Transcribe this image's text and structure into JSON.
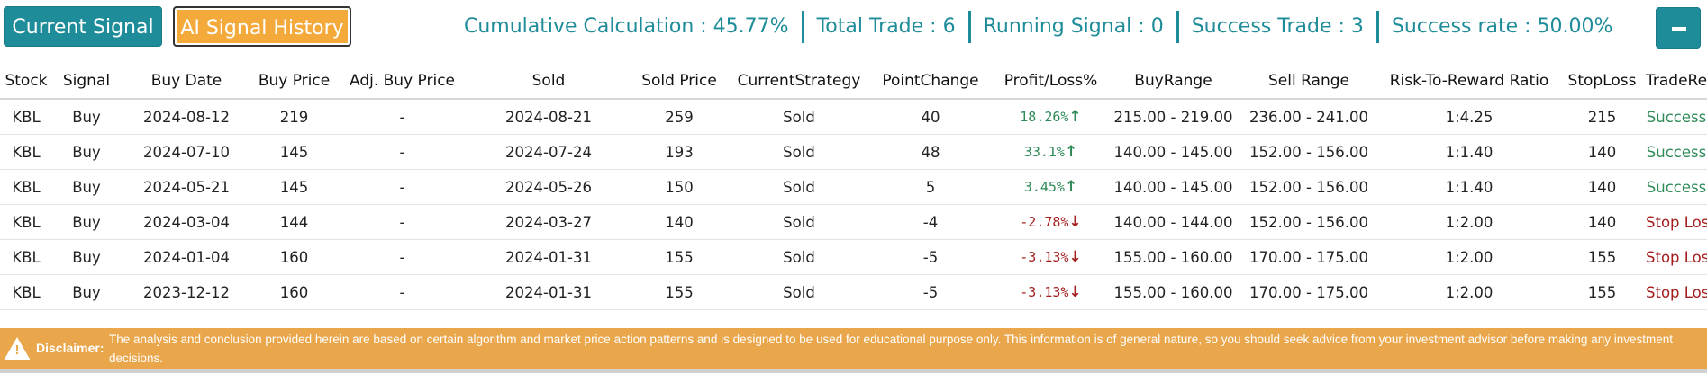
{
  "toolbar": {
    "current_signal_label": "Current Signal",
    "history_label": "AI Signal History",
    "collapse_icon": "minus-icon"
  },
  "stats": {
    "cumulative": "Cumulative Calculation :  45.77%",
    "total_trade": "Total Trade :  6",
    "running_signal": "Running Signal :  0",
    "success_trade": "Success Trade :  3",
    "success_rate": "Success rate :  50.00%"
  },
  "table": {
    "headers": [
      "Stock",
      "Signal",
      "Buy Date",
      "Buy Price",
      "Adj. Buy Price",
      "Sold",
      "Sold Price",
      "CurrentStrategy",
      "PointChange",
      "Profit/Loss%",
      "BuyRange",
      "Sell Range",
      "Risk-To-Reward Ratio",
      "StopLoss",
      "TradeResult"
    ],
    "rows": [
      {
        "stock": "KBL",
        "signal": "Buy",
        "buy_date": "2024-08-12",
        "buy_price": "219",
        "adj_buy_price": "-",
        "sold": "2024-08-21",
        "sold_price": "259",
        "strategy": "Sold",
        "point_change": "40",
        "pl": "18.26%",
        "pl_dir": "up",
        "buy_range": "215.00 - 219.00",
        "sell_range": "236.00 - 241.00",
        "rr": "1:4.25",
        "stoploss": "215",
        "result": "Success"
      },
      {
        "stock": "KBL",
        "signal": "Buy",
        "buy_date": "2024-07-10",
        "buy_price": "145",
        "adj_buy_price": "-",
        "sold": "2024-07-24",
        "sold_price": "193",
        "strategy": "Sold",
        "point_change": "48",
        "pl": "33.1%",
        "pl_dir": "up",
        "buy_range": "140.00 - 145.00",
        "sell_range": "152.00 - 156.00",
        "rr": "1:1.40",
        "stoploss": "140",
        "result": "Success"
      },
      {
        "stock": "KBL",
        "signal": "Buy",
        "buy_date": "2024-05-21",
        "buy_price": "145",
        "adj_buy_price": "-",
        "sold": "2024-05-26",
        "sold_price": "150",
        "strategy": "Sold",
        "point_change": "5",
        "pl": "3.45%",
        "pl_dir": "up",
        "buy_range": "140.00 - 145.00",
        "sell_range": "152.00 - 156.00",
        "rr": "1:1.40",
        "stoploss": "140",
        "result": "Success"
      },
      {
        "stock": "KBL",
        "signal": "Buy",
        "buy_date": "2024-03-04",
        "buy_price": "144",
        "adj_buy_price": "-",
        "sold": "2024-03-27",
        "sold_price": "140",
        "strategy": "Sold",
        "point_change": "-4",
        "pl": "-2.78%",
        "pl_dir": "down",
        "buy_range": "140.00 - 144.00",
        "sell_range": "152.00 - 156.00",
        "rr": "1:2.00",
        "stoploss": "140",
        "result": "Stop Loss"
      },
      {
        "stock": "KBL",
        "signal": "Buy",
        "buy_date": "2024-01-04",
        "buy_price": "160",
        "adj_buy_price": "-",
        "sold": "2024-01-31",
        "sold_price": "155",
        "strategy": "Sold",
        "point_change": "-5",
        "pl": "-3.13%",
        "pl_dir": "down",
        "buy_range": "155.00 - 160.00",
        "sell_range": "170.00 - 175.00",
        "rr": "1:2.00",
        "stoploss": "155",
        "result": "Stop Loss"
      },
      {
        "stock": "KBL",
        "signal": "Buy",
        "buy_date": "2023-12-12",
        "buy_price": "160",
        "adj_buy_price": "-",
        "sold": "2024-01-31",
        "sold_price": "155",
        "strategy": "Sold",
        "point_change": "-5",
        "pl": "-3.13%",
        "pl_dir": "down",
        "buy_range": "155.00 - 160.00",
        "sell_range": "170.00 - 175.00",
        "rr": "1:2.00",
        "stoploss": "155",
        "result": "Stop Loss"
      }
    ]
  },
  "disclaimer": {
    "icon": "warning-icon",
    "label": "Disclaimer:",
    "text": "The analysis and conclusion provided herein are based on certain algorithm and market price action patterns and is designed to be used for educational purpose only. This information is of general nature, so you should seek advice from your investment advisor before making any investment decisions."
  },
  "colors": {
    "primary": "#1f8c99",
    "accent": "#f4a93b",
    "profit": "#2e8b57",
    "loss": "#a41e1e",
    "disclaimer_bg": "#e9a64a"
  }
}
